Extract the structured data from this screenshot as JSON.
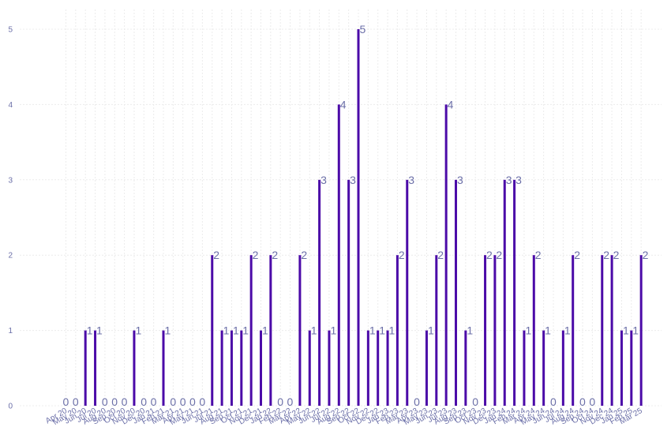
{
  "chart_data": {
    "type": "bar",
    "title": "",
    "xlabel": "",
    "ylabel": "",
    "ylim": [
      0,
      5.3
    ],
    "yticks": [
      0,
      1,
      2,
      3,
      4,
      5
    ],
    "grid": true,
    "bar_color": "#4b0aa8",
    "label_color": "#6b6fa8",
    "categories": [
      "Apr 20",
      "May 20",
      "Jun 20",
      "Jul 20",
      "Aug 20",
      "Sep 20",
      "Oct 20",
      "Nov 20",
      "Dec 20",
      "Jan 21",
      "Feb 21",
      "Mar 21",
      "Apr 21",
      "May 21",
      "Jun 21",
      "Jul 21",
      "Aug 21",
      "Sep 21",
      "Oct 21",
      "Nov 21",
      "Dec 21",
      "Jan 22",
      "Feb 22",
      "Mar 22",
      "Apr 22",
      "May 22",
      "Jun 22",
      "Jul 22",
      "Aug 22",
      "Sep 22",
      "Oct 22",
      "Nov 22",
      "Dec 22",
      "Jan 23",
      "Feb 23",
      "Mar 23",
      "Apr 23",
      "May 23",
      "Jun 23",
      "Jul 23",
      "Aug 23",
      "Sep 23",
      "Oct 23",
      "Nov 23",
      "Dec 23",
      "Jan 24",
      "Feb 24",
      "Mar 24",
      "Apr 24",
      "May 24",
      "Jun 24",
      "Jul 24",
      "Aug 24",
      "Sep 24",
      "Oct 24",
      "Nov 24",
      "Dec 24",
      "Jan 25",
      "Feb 25",
      "Mar 25"
    ],
    "values": [
      0,
      0,
      1,
      1,
      0,
      0,
      0,
      1,
      0,
      0,
      1,
      0,
      0,
      0,
      0,
      2,
      1,
      1,
      1,
      2,
      1,
      2,
      0,
      0,
      2,
      1,
      3,
      1,
      4,
      3,
      5,
      1,
      1,
      1,
      2,
      3,
      0,
      1,
      2,
      4,
      3,
      1,
      0,
      2,
      2,
      3,
      3,
      1,
      2,
      1,
      0,
      1,
      2,
      0,
      0,
      2,
      2,
      1,
      1,
      2
    ]
  }
}
